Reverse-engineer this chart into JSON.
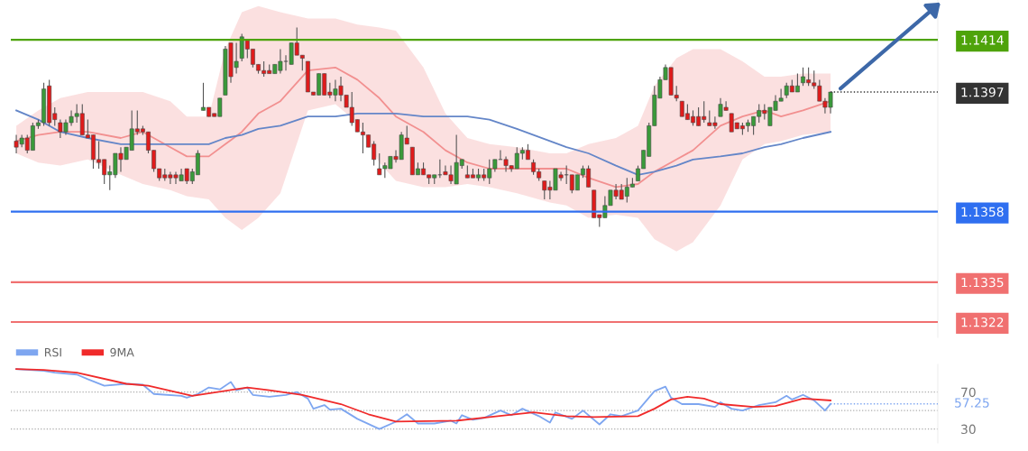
{
  "chart_data": [
    {
      "type": "candlestick",
      "categories": [
        null,
        null,
        null,
        null,
        null,
        null,
        null,
        null,
        null,
        null,
        null,
        null,
        null,
        null,
        null,
        null,
        null,
        null,
        null,
        null,
        null,
        null,
        null,
        null,
        null,
        null,
        null,
        null,
        null,
        null,
        null,
        null,
        null,
        null,
        null,
        null,
        null,
        null,
        null,
        null,
        null,
        null,
        null,
        null,
        null,
        null,
        null,
        null,
        null,
        null,
        null,
        null,
        null,
        null,
        null,
        null,
        null,
        null,
        null,
        null,
        null,
        null,
        null,
        null,
        null,
        null,
        null,
        null,
        null,
        null,
        null,
        null,
        null,
        null,
        null,
        null,
        null,
        null,
        null,
        null,
        null,
        null,
        null,
        null,
        null,
        null,
        null,
        null,
        null,
        null,
        null,
        null,
        null,
        null,
        null,
        null,
        null,
        null,
        null,
        null,
        null,
        null,
        null,
        null,
        null,
        null,
        null,
        null,
        null,
        null,
        null,
        null,
        null,
        null,
        null,
        null,
        null,
        null,
        null,
        null,
        null,
        null,
        null,
        null,
        null,
        null,
        null,
        null,
        null,
        null,
        null,
        null,
        null,
        null,
        null,
        null,
        null,
        null,
        null,
        null,
        null,
        null,
        null,
        null,
        null,
        null,
        null,
        null,
        null,
        null,
        null,
        null,
        null,
        null,
        null,
        null,
        null,
        null,
        null,
        null,
        null,
        null,
        null,
        null,
        null,
        null,
        null,
        null
      ],
      "ohlc": [
        [
          1.1381,
          1.1383,
          1.1377,
          1.1379
        ],
        [
          1.138,
          1.1383,
          1.1379,
          1.1382
        ],
        [
          1.1382,
          1.1383,
          1.1377,
          1.1378
        ],
        [
          1.1378,
          1.1387,
          1.1378,
          1.1386
        ],
        [
          1.1386,
          1.1388,
          1.1385,
          1.1387
        ],
        [
          1.1387,
          1.14,
          1.1386,
          1.1398
        ],
        [
          1.1399,
          1.1401,
          1.1386,
          1.1387
        ],
        [
          1.139,
          1.1392,
          1.1386,
          1.1388
        ],
        [
          1.1387,
          1.1388,
          1.1382,
          1.1384
        ],
        [
          1.1384,
          1.1388,
          1.1383,
          1.1387
        ],
        [
          1.1387,
          1.1391,
          1.1386,
          1.1389
        ],
        [
          1.1389,
          1.1393,
          1.1387,
          1.139
        ],
        [
          1.139,
          1.1393,
          1.1383,
          1.1383
        ],
        [
          1.1383,
          1.1388,
          1.1382,
          1.1382
        ],
        [
          1.1383,
          1.1383,
          1.1372,
          1.1375
        ],
        [
          1.1375,
          1.1381,
          1.1372,
          1.1374
        ],
        [
          1.1375,
          1.1375,
          1.1367,
          1.137
        ],
        [
          1.137,
          1.1373,
          1.1365,
          1.1371
        ],
        [
          1.137,
          1.1377,
          1.1369,
          1.1377
        ],
        [
          1.1377,
          1.1379,
          1.1371,
          1.1375
        ],
        [
          1.1375,
          1.1379,
          1.1375,
          1.1379
        ],
        [
          1.1378,
          1.1391,
          1.1378,
          1.1385
        ],
        [
          1.1385,
          1.1391,
          1.1383,
          1.1384
        ],
        [
          1.1385,
          1.1386,
          1.1383,
          1.1384
        ],
        [
          1.1384,
          1.1384,
          1.1377,
          1.1378
        ],
        [
          1.1378,
          1.1378,
          1.1371,
          1.1372
        ],
        [
          1.1372,
          1.1372,
          1.1368,
          1.1369
        ],
        [
          1.137,
          1.1372,
          1.1368,
          1.1369
        ],
        [
          1.137,
          1.1371,
          1.1367,
          1.1369
        ],
        [
          1.137,
          1.1371,
          1.1367,
          1.1369
        ],
        [
          1.1368,
          1.1372,
          1.1368,
          1.137
        ],
        [
          1.1372,
          1.1372,
          1.1367,
          1.1368
        ],
        [
          1.1368,
          1.1372,
          1.1367,
          1.1371
        ],
        [
          1.137,
          1.1378,
          1.137,
          1.1377
        ],
        [
          1.1391,
          1.14,
          1.1391,
          1.1392
        ],
        [
          1.1392,
          1.1392,
          1.1389,
          1.1389
        ],
        [
          1.139,
          1.139,
          1.1389,
          1.1389
        ],
        [
          1.1389,
          1.1395,
          1.1389,
          1.1395
        ],
        [
          1.1396,
          1.1412,
          1.1396,
          1.1411
        ],
        [
          1.1413,
          1.1413,
          1.14,
          1.1402
        ],
        [
          1.1405,
          1.1413,
          1.1403,
          1.1407
        ],
        [
          1.1408,
          1.1416,
          1.1407,
          1.1415
        ],
        [
          1.1414,
          1.1414,
          1.1408,
          1.1411
        ],
        [
          1.1411,
          1.1411,
          1.1405,
          1.1406
        ],
        [
          1.1406,
          1.1406,
          1.1403,
          1.1404
        ],
        [
          1.1404,
          1.1407,
          1.1402,
          1.1403
        ],
        [
          1.1404,
          1.1406,
          1.1403,
          1.1403
        ],
        [
          1.1403,
          1.1406,
          1.1403,
          1.1406
        ],
        [
          1.1404,
          1.1411,
          1.1403,
          1.1407
        ],
        [
          1.1407,
          1.1409,
          1.1404,
          1.1407
        ],
        [
          1.1406,
          1.1413,
          1.1406,
          1.1413
        ],
        [
          1.1413,
          1.1418,
          1.1409,
          1.1409
        ],
        [
          1.1409,
          1.1409,
          1.1404,
          1.1408
        ],
        [
          1.1407,
          1.1407,
          1.1397,
          1.1397
        ],
        [
          1.1397,
          1.1397,
          1.1396,
          1.1396
        ],
        [
          1.1396,
          1.1403,
          1.1396,
          1.1403
        ],
        [
          1.1403,
          1.1403,
          1.1396,
          1.1396
        ],
        [
          1.1397,
          1.14,
          1.1395,
          1.1396
        ],
        [
          1.1396,
          1.1401,
          1.1394,
          1.1398
        ],
        [
          1.1399,
          1.1402,
          1.1394,
          1.1396
        ],
        [
          1.1396,
          1.1396,
          1.1392,
          1.1392
        ],
        [
          1.1392,
          1.1397,
          1.1386,
          1.1387
        ],
        [
          1.1388,
          1.1388,
          1.1384,
          1.1384
        ],
        [
          1.1384,
          1.1387,
          1.1377,
          1.1383
        ],
        [
          1.1383,
          1.1383,
          1.1379,
          1.1379
        ],
        [
          1.138,
          1.1381,
          1.1373,
          1.1375
        ],
        [
          1.1372,
          1.1377,
          1.137,
          1.137
        ],
        [
          1.1372,
          1.1374,
          1.1369,
          1.1373
        ],
        [
          1.1372,
          1.1376,
          1.1372,
          1.1376
        ],
        [
          1.1376,
          1.1378,
          1.1374,
          1.1375
        ],
        [
          1.1375,
          1.1384,
          1.1375,
          1.1383
        ],
        [
          1.1382,
          1.1386,
          1.138,
          1.138
        ],
        [
          1.1379,
          1.1379,
          1.137,
          1.137
        ],
        [
          1.137,
          1.1374,
          1.137,
          1.1372
        ],
        [
          1.1372,
          1.1374,
          1.137,
          1.137
        ],
        [
          1.137,
          1.137,
          1.1367,
          1.1369
        ],
        [
          1.1369,
          1.137,
          1.1367,
          1.137
        ],
        [
          1.137,
          1.1375,
          1.1369,
          1.137
        ],
        [
          1.1371,
          1.1373,
          1.137,
          1.137
        ],
        [
          1.137,
          1.1373,
          1.1367,
          1.1368
        ],
        [
          1.1367,
          1.1383,
          1.1367,
          1.1374
        ],
        [
          1.1373,
          1.1375,
          1.1372,
          1.1375
        ],
        [
          1.137,
          1.1373,
          1.1369,
          1.1369
        ],
        [
          1.137,
          1.1372,
          1.1369,
          1.1369
        ],
        [
          1.1369,
          1.1372,
          1.1368,
          1.137
        ],
        [
          1.137,
          1.1372,
          1.1368,
          1.1369
        ],
        [
          1.1369,
          1.1375,
          1.1367,
          1.1372
        ],
        [
          1.1372,
          1.1375,
          1.1371,
          1.1375
        ],
        [
          1.1375,
          1.1378,
          1.1375,
          1.1375
        ],
        [
          1.1375,
          1.1376,
          1.1371,
          1.1373
        ],
        [
          1.1373,
          1.1373,
          1.1371,
          1.1372
        ],
        [
          1.1372,
          1.1379,
          1.1372,
          1.1377
        ],
        [
          1.1377,
          1.1379,
          1.1375,
          1.1378
        ],
        [
          1.1378,
          1.138,
          1.1375,
          1.1375
        ],
        [
          1.1374,
          1.1375,
          1.137,
          1.1371
        ],
        [
          1.1371,
          1.1372,
          1.1368,
          1.1369
        ],
        [
          1.1368,
          1.1368,
          1.1362,
          1.1365
        ],
        [
          1.1366,
          1.1368,
          1.1362,
          1.1365
        ],
        [
          1.1365,
          1.1372,
          1.1365,
          1.1372
        ],
        [
          1.137,
          1.1371,
          1.1368,
          1.1369
        ],
        [
          1.137,
          1.1373,
          1.1367,
          1.137
        ],
        [
          1.137,
          1.137,
          1.1364,
          1.1365
        ],
        [
          1.1365,
          1.137,
          1.1365,
          1.137
        ],
        [
          1.137,
          1.1373,
          1.1369,
          1.1372
        ],
        [
          1.1372,
          1.1373,
          1.1366,
          1.1366
        ],
        [
          1.1365,
          1.1365,
          1.1356,
          1.1356
        ],
        [
          1.1357,
          1.1357,
          1.1353,
          1.1356
        ],
        [
          1.1356,
          1.1363,
          1.1356,
          1.136
        ],
        [
          1.136,
          1.1365,
          1.136,
          1.1365
        ],
        [
          1.1365,
          1.1367,
          1.1362,
          1.1363
        ],
        [
          1.1365,
          1.1367,
          1.1362,
          1.1362
        ],
        [
          1.1363,
          1.1369,
          1.1361,
          1.1366
        ],
        [
          1.1366,
          1.1369,
          1.1366,
          1.1367
        ],
        [
          1.1368,
          1.1373,
          1.1368,
          1.1372
        ],
        [
          1.1372,
          1.1378,
          1.1372,
          1.1378
        ],
        [
          1.1376,
          1.1387,
          1.1376,
          1.1386
        ],
        [
          1.1386,
          1.1399,
          1.1386,
          1.1396
        ],
        [
          1.1395,
          1.1402,
          1.1395,
          1.1401
        ],
        [
          1.1401,
          1.1406,
          1.1401,
          1.1405
        ],
        [
          1.1405,
          1.1405,
          1.1396,
          1.1396
        ],
        [
          1.1396,
          1.1399,
          1.1394,
          1.1395
        ],
        [
          1.1394,
          1.1394,
          1.1389,
          1.1389
        ],
        [
          1.139,
          1.1393,
          1.1388,
          1.1388
        ],
        [
          1.1389,
          1.1391,
          1.1386,
          1.1387
        ],
        [
          1.1389,
          1.1392,
          1.1386,
          1.1386
        ],
        [
          1.1389,
          1.1394,
          1.1387,
          1.1388
        ],
        [
          1.1387,
          1.1391,
          1.1386,
          1.1386
        ],
        [
          1.1387,
          1.1389,
          1.1385,
          1.1386
        ],
        [
          1.1389,
          1.1395,
          1.1389,
          1.1393
        ],
        [
          1.1392,
          1.1394,
          1.1391,
          1.1391
        ],
        [
          1.139,
          1.139,
          1.1384,
          1.1384
        ],
        [
          1.1387,
          1.1387,
          1.1385,
          1.1385
        ],
        [
          1.1386,
          1.1387,
          1.1383,
          1.1385
        ],
        [
          1.1386,
          1.1388,
          1.1384,
          1.1387
        ],
        [
          1.1386,
          1.1389,
          1.1383,
          1.1389
        ],
        [
          1.1389,
          1.1393,
          1.1387,
          1.1391
        ],
        [
          1.1391,
          1.1393,
          1.1388,
          1.139
        ],
        [
          1.1386,
          1.1392,
          1.1386,
          1.1392
        ],
        [
          1.1391,
          1.1396,
          1.1391,
          1.1394
        ],
        [
          1.1394,
          1.1398,
          1.1394,
          1.1395
        ],
        [
          1.1396,
          1.14,
          1.1395,
          1.1399
        ],
        [
          1.1399,
          1.1401,
          1.1397,
          1.1397
        ],
        [
          1.1397,
          1.1403,
          1.1397,
          1.1399
        ],
        [
          1.14,
          1.1405,
          1.1399,
          1.1402
        ],
        [
          1.1401,
          1.1405,
          1.1399,
          1.14
        ],
        [
          1.14,
          1.1404,
          1.1398,
          1.1399
        ],
        [
          1.1399,
          1.1401,
          1.1394,
          1.1394
        ],
        [
          1.1394,
          1.1395,
          1.139,
          1.1392
        ],
        [
          1.1392,
          1.1397,
          1.139,
          1.1397
        ],
        null,
        null,
        null,
        null,
        null,
        null,
        null,
        null,
        null,
        null,
        null,
        null,
        null,
        null,
        null,
        null,
        null,
        null,
        null
      ],
      "series": [
        {
          "type": "line",
          "color": "#f29090",
          "values": [
            1.1381,
            null,
            null,
            null,
            1.1383,
            null,
            null,
            null,
            1.1384,
            null,
            null,
            null,
            null,
            1.1384,
            null,
            null,
            null,
            null,
            null,
            1.1382,
            null,
            null,
            null,
            1.1384,
            null,
            null,
            null,
            null,
            1.1379,
            null,
            null,
            1.1376,
            null,
            null,
            null,
            1.1376,
            null,
            null,
            1.138,
            null,
            null,
            1.1384,
            null,
            null,
            1.139,
            null,
            null,
            null,
            1.1394,
            null,
            null,
            null,
            null,
            1.1404,
            null,
            null,
            null,
            null,
            1.1405,
            null,
            null,
            null,
            1.1401,
            null,
            null,
            null,
            1.1395,
            null,
            null,
            1.1389,
            null,
            null,
            null,
            null,
            1.1384,
            null,
            null,
            null,
            1.1378,
            null,
            null,
            null,
            1.1374,
            null,
            null,
            null,
            1.1372,
            null,
            null,
            null,
            null,
            1.1372,
            null,
            null,
            null,
            null,
            null,
            1.1372,
            null,
            null,
            1.1372,
            null,
            null,
            null,
            1.1369,
            null,
            null,
            null,
            null,
            1.1366,
            null,
            null,
            null,
            1.1367,
            null,
            null,
            1.1371,
            null,
            null,
            null,
            1.1375,
            null,
            null,
            1.1378,
            null,
            null,
            null,
            null,
            1.1386,
            null,
            null,
            null,
            1.1389,
            null,
            null,
            null,
            1.1391,
            null,
            null,
            1.1389,
            null,
            null,
            null,
            1.1391,
            null,
            null,
            null,
            null,
            1.1394,
            null,
            null,
            null,
            null,
            null,
            null,
            null,
            null,
            null,
            null,
            null,
            null,
            null,
            null,
            null,
            null,
            null,
            null,
            null
          ],
          "lower": [
            1.1377,
            null,
            null,
            null,
            1.1374,
            null,
            null,
            null,
            1.1373,
            null,
            null,
            null,
            null,
            1.1375,
            null,
            null,
            null,
            null,
            null,
            1.137,
            null,
            null,
            null,
            1.1367,
            null,
            null,
            null,
            null,
            1.1365,
            null,
            null,
            1.1363,
            null,
            null,
            null,
            1.1362,
            null,
            null,
            1.1356,
            null,
            null,
            1.1352,
            null,
            null,
            1.1356,
            null,
            null,
            null,
            1.1364,
            null,
            null,
            null,
            null,
            1.1391,
            null,
            null,
            null,
            null,
            1.1393,
            null,
            null,
            null,
            1.1387,
            null,
            null,
            null,
            1.1374,
            null,
            null,
            1.1368,
            null,
            null,
            null,
            null,
            1.1366,
            null,
            null,
            null,
            1.1366,
            null,
            null,
            null,
            1.1367,
            null,
            null,
            null,
            1.1366,
            null,
            null,
            null,
            null,
            1.1364,
            null,
            null,
            null,
            null,
            null,
            1.1361,
            null,
            null,
            1.136,
            null,
            null,
            null,
            1.1356,
            null,
            null,
            null,
            null,
            1.1357,
            null,
            null,
            null,
            1.1356,
            null,
            null,
            1.1349,
            null,
            null,
            null,
            1.1345,
            null,
            null,
            1.1348,
            null,
            null,
            null,
            null,
            1.136,
            null,
            null,
            null,
            1.1375,
            null,
            null,
            null,
            1.138,
            null,
            null,
            1.1381,
            null,
            null,
            null,
            1.1383,
            null,
            null,
            null,
            null,
            1.1384,
            null,
            null,
            null,
            null,
            null,
            null,
            null,
            null,
            null,
            null,
            null,
            null,
            null,
            null,
            null,
            null,
            null,
            null,
            null
          ],
          "upper": [
            1.1386,
            null,
            null,
            null,
            1.1391,
            null,
            null,
            null,
            1.1395,
            null,
            null,
            null,
            null,
            1.1397,
            null,
            null,
            null,
            null,
            null,
            1.1397,
            null,
            null,
            null,
            1.1397,
            null,
            null,
            null,
            null,
            1.1394,
            null,
            null,
            1.1389,
            null,
            null,
            null,
            1.1389,
            null,
            null,
            1.1411,
            null,
            null,
            1.1423,
            null,
            null,
            1.1425,
            null,
            null,
            null,
            1.1423,
            null,
            null,
            null,
            null,
            1.1421,
            null,
            null,
            null,
            null,
            1.1421,
            null,
            null,
            null,
            1.1419,
            null,
            null,
            null,
            1.1418,
            null,
            null,
            1.1417,
            null,
            null,
            null,
            null,
            1.1405,
            null,
            null,
            null,
            1.139,
            null,
            null,
            null,
            1.1382,
            null,
            null,
            null,
            1.138,
            null,
            null,
            null,
            null,
            1.1379,
            null,
            null,
            null,
            null,
            null,
            1.1377,
            null,
            null,
            1.1377,
            null,
            null,
            null,
            1.138,
            null,
            null,
            null,
            null,
            1.1382,
            null,
            null,
            null,
            1.1386,
            null,
            null,
            1.1399,
            null,
            null,
            null,
            1.1408,
            null,
            null,
            1.1411,
            null,
            null,
            null,
            null,
            1.1411,
            null,
            null,
            null,
            1.1407,
            null,
            null,
            null,
            1.1402,
            null,
            null,
            1.1402,
            null,
            null,
            null,
            1.1403,
            null,
            null,
            null,
            null,
            1.1403,
            null,
            null,
            null,
            null,
            null,
            null,
            null,
            null,
            null,
            null,
            null,
            null,
            null,
            null,
            null,
            null,
            null,
            null,
            null
          ]
        },
        {
          "type": "line",
          "color": "#6486c8",
          "values": [
            1.1391,
            null,
            null,
            null,
            1.1388,
            null,
            null,
            null,
            1.1384,
            null,
            null,
            null,
            null,
            1.1382,
            null,
            null,
            null,
            null,
            null,
            1.138,
            null,
            null,
            null,
            1.138,
            null,
            null,
            null,
            null,
            1.138,
            null,
            null,
            1.138,
            null,
            null,
            null,
            1.138,
            null,
            null,
            1.1382,
            null,
            null,
            1.1383,
            null,
            null,
            1.1385,
            null,
            null,
            null,
            1.1386,
            null,
            null,
            null,
            null,
            1.1389,
            null,
            null,
            null,
            null,
            1.1389,
            null,
            null,
            null,
            1.139,
            null,
            null,
            null,
            1.139,
            null,
            null,
            1.139,
            null,
            null,
            null,
            null,
            1.1389,
            null,
            null,
            null,
            1.1389,
            null,
            null,
            null,
            1.1389,
            null,
            null,
            null,
            1.1388,
            null,
            null,
            null,
            null,
            1.1385,
            null,
            null,
            null,
            null,
            null,
            1.1381,
            null,
            null,
            1.1379,
            null,
            null,
            null,
            1.1377,
            null,
            null,
            null,
            null,
            1.1373,
            null,
            null,
            null,
            1.137,
            null,
            null,
            1.1371,
            null,
            null,
            null,
            1.1373,
            null,
            null,
            1.1375,
            null,
            null,
            null,
            null,
            1.1376,
            null,
            null,
            null,
            1.1377,
            null,
            null,
            null,
            1.1379,
            null,
            null,
            1.138,
            null,
            null,
            null,
            1.1382,
            null,
            null,
            null,
            null,
            1.1384,
            null,
            null,
            null,
            null,
            null,
            null,
            null,
            null,
            null,
            null,
            null,
            null,
            null,
            null,
            null,
            null,
            null,
            null,
            null
          ]
        }
      ],
      "ylim": [
        1.1317,
        1.1427
      ],
      "yticks": [
        1.1322,
        1.1335,
        1.1358,
        1.1397,
        1.1414
      ],
      "ref_lines": [
        {
          "axis": "y",
          "value": 1.1414,
          "color": "#4ea30a",
          "line_style": "solid"
        },
        {
          "axis": "y",
          "value": 1.1397,
          "color": "#333333",
          "line_style": "dotted"
        },
        {
          "axis": "y",
          "value": 1.1358,
          "color": "#2f6ff0",
          "line_style": "solid"
        },
        {
          "axis": "y",
          "value": 1.1335,
          "color": "#f07070",
          "line_style": "solid"
        },
        {
          "axis": "y",
          "value": 1.1322,
          "color": "#f07070",
          "line_style": "solid"
        }
      ],
      "tick_labels": "y"
    },
    {
      "type": "line",
      "categories": [
        null,
        null,
        null,
        null,
        null,
        null,
        null,
        null,
        null,
        null,
        null,
        null,
        null,
        null,
        null,
        null,
        null,
        null,
        null,
        null,
        null,
        null,
        null,
        null,
        null,
        null,
        null,
        null,
        null,
        null,
        null,
        null,
        null,
        null,
        null,
        null,
        null,
        null,
        null,
        null,
        null,
        null,
        null,
        null,
        null,
        null,
        null,
        null,
        null,
        null,
        null,
        null,
        null,
        null,
        null,
        null,
        null,
        null,
        null,
        null,
        null,
        null,
        null,
        null,
        null,
        null,
        null,
        null,
        null,
        null,
        null,
        null,
        null,
        null,
        null,
        null,
        null,
        null,
        null,
        null,
        null,
        null,
        null,
        null,
        null,
        null,
        null,
        null,
        null,
        null,
        null,
        null,
        null,
        null,
        null,
        null,
        null,
        null,
        null,
        null,
        null,
        null,
        null,
        null,
        null,
        null,
        null,
        null,
        null,
        null,
        null,
        null,
        null,
        null,
        null,
        null,
        null,
        null,
        null,
        null,
        null,
        null,
        null,
        null,
        null,
        null,
        null,
        null,
        null,
        null,
        null,
        null,
        null,
        null,
        null,
        null,
        null,
        null,
        null,
        null,
        null,
        null,
        null,
        null,
        null,
        null,
        null,
        null,
        null,
        null,
        null,
        null,
        null,
        null,
        null,
        null,
        null,
        null,
        null,
        null,
        null,
        null,
        null,
        null,
        null,
        null,
        null,
        null
      ],
      "series": [
        {
          "name": "RSI",
          "color": "#7ea6f0",
          "values": [
            95,
            null,
            null,
            null,
            null,
            93,
            null,
            91,
            null,
            null,
            null,
            89,
            null,
            84,
            null,
            null,
            77,
            null,
            null,
            null,
            79,
            null,
            null,
            78,
            null,
            68,
            null,
            null,
            null,
            null,
            66,
            64,
            null,
            68,
            null,
            75,
            null,
            73,
            null,
            81,
            72,
            null,
            75,
            67,
            null,
            null,
            65,
            null,
            null,
            67,
            null,
            70,
            null,
            63,
            52,
            null,
            56,
            51,
            null,
            52,
            null,
            null,
            41,
            null,
            null,
            null,
            30,
            null,
            null,
            38,
            null,
            46,
            null,
            36,
            null,
            null,
            36,
            null,
            null,
            39,
            36,
            45,
            null,
            40,
            null,
            42,
            null,
            null,
            50,
            null,
            45,
            null,
            52,
            null,
            null,
            44,
            null,
            37,
            48,
            null,
            null,
            41,
            null,
            50,
            null,
            null,
            35,
            null,
            46,
            null,
            44,
            null,
            null,
            50,
            null,
            null,
            71,
            null,
            76,
            64,
            null,
            57,
            null,
            null,
            57,
            null,
            null,
            54,
            59,
            null,
            52,
            null,
            50,
            null,
            null,
            56,
            null,
            null,
            59,
            null,
            66,
            62,
            null,
            67,
            null,
            61,
            null,
            50,
            57.25,
            null,
            null,
            null,
            null,
            null,
            null,
            null,
            null,
            null,
            null,
            null,
            null,
            null,
            null,
            null,
            null,
            null,
            null,
            null
          ]
        },
        {
          "name": "9MA",
          "color": "#f02a2a",
          "values": [
            95,
            null,
            null,
            null,
            null,
            94,
            null,
            null,
            null,
            null,
            null,
            91,
            null,
            null,
            null,
            null,
            null,
            null,
            null,
            null,
            79,
            null,
            null,
            null,
            77,
            null,
            null,
            null,
            null,
            null,
            null,
            null,
            66,
            null,
            null,
            null,
            null,
            null,
            null,
            null,
            null,
            null,
            75,
            null,
            null,
            null,
            72,
            null,
            null,
            null,
            null,
            null,
            67,
            null,
            null,
            null,
            null,
            null,
            null,
            57,
            null,
            null,
            null,
            null,
            46,
            null,
            null,
            null,
            null,
            38,
            null,
            null,
            null,
            null,
            null,
            null,
            null,
            null,
            null,
            null,
            39,
            null,
            null,
            null,
            null,
            null,
            43,
            null,
            null,
            null,
            null,
            null,
            null,
            null,
            48,
            null,
            null,
            null,
            null,
            null,
            44,
            null,
            null,
            null,
            null,
            43,
            null,
            null,
            null,
            null,
            null,
            null,
            null,
            44,
            null,
            null,
            52,
            null,
            null,
            62,
            null,
            null,
            65,
            null,
            null,
            63,
            null,
            null,
            57,
            null,
            null,
            null,
            null,
            null,
            54,
            null,
            null,
            null,
            55,
            null,
            null,
            null,
            null,
            63,
            null,
            null,
            null,
            null,
            61,
            null,
            null,
            null,
            null,
            null,
            null,
            null,
            null,
            null,
            null,
            null,
            null,
            null,
            null,
            null,
            null,
            null,
            null,
            null
          ]
        }
      ],
      "ylim": [
        15,
        100
      ],
      "yticks": [
        30,
        {
          "value": 50,
          "label": null
        },
        70
      ],
      "ref_lines": [
        {
          "axis": "y",
          "value": 57.25,
          "label": "57.25",
          "color": "#7ea6f0",
          "line_style": "dotted"
        }
      ],
      "grid": "y",
      "legend": "top left",
      "tick_labels": "y"
    }
  ]
}
